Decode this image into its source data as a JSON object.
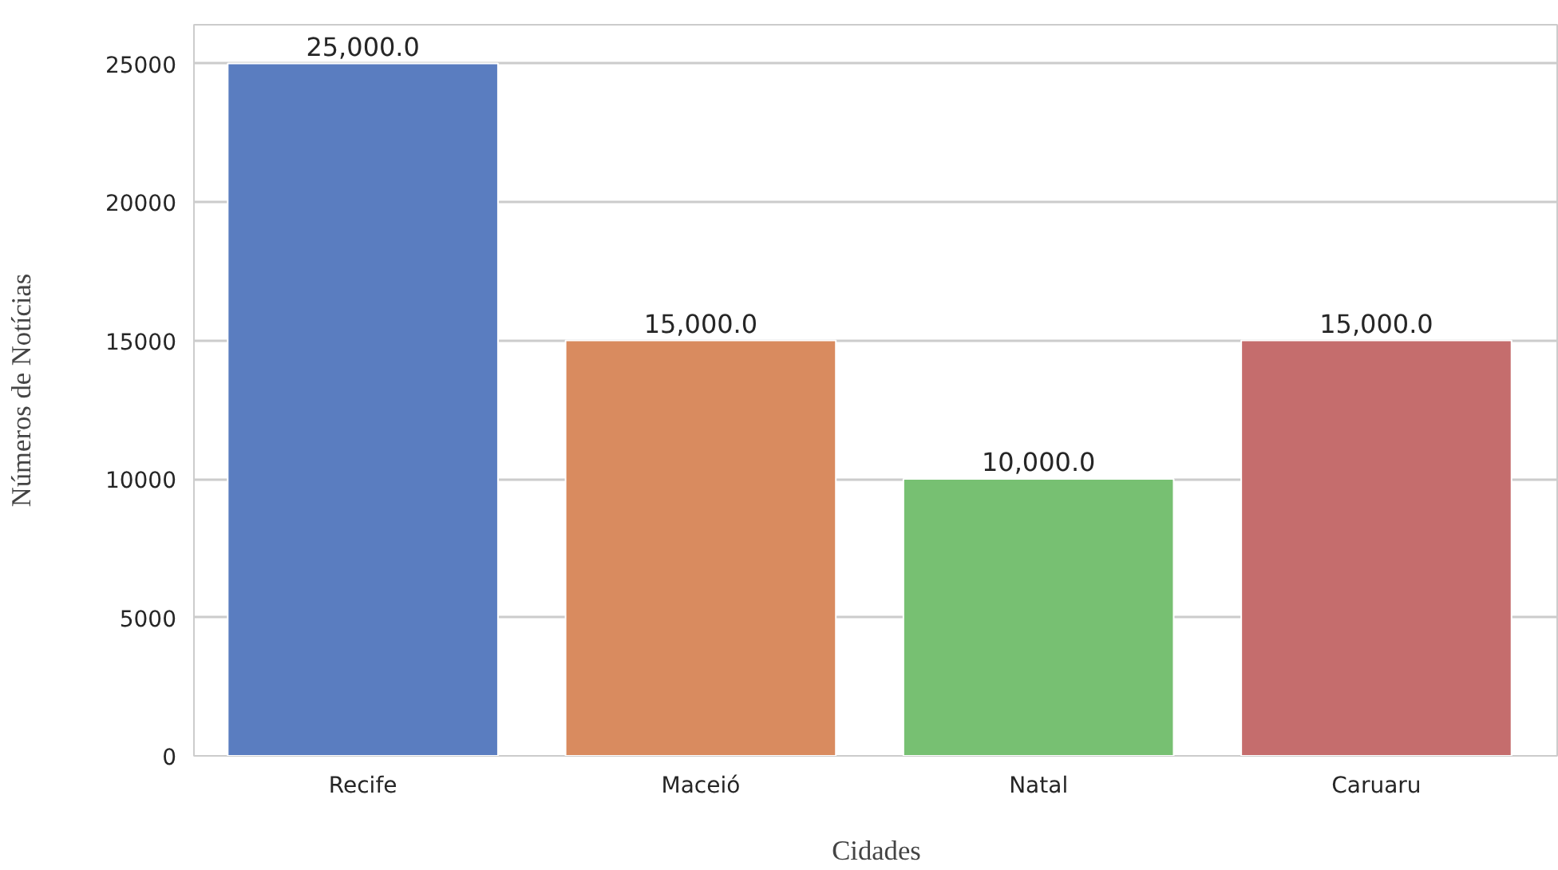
{
  "chart_data": {
    "type": "bar",
    "xlabel": "Cidades",
    "ylabel": "Números de Notícias",
    "categories": [
      "Recife",
      "Maceió",
      "Natal",
      "Caruaru"
    ],
    "values": [
      25000,
      15000,
      10000,
      15000
    ],
    "colors": [
      "#5a7dc0",
      "#d98b5f",
      "#77c072",
      "#c56d6d"
    ],
    "value_labels": [
      "25,000.0",
      "15,000.0",
      "10,000.0",
      "15,000.0"
    ],
    "ylim": [
      0,
      26400
    ],
    "yticks": [
      0,
      5000,
      10000,
      15000,
      20000,
      25000
    ],
    "grid": "y"
  }
}
